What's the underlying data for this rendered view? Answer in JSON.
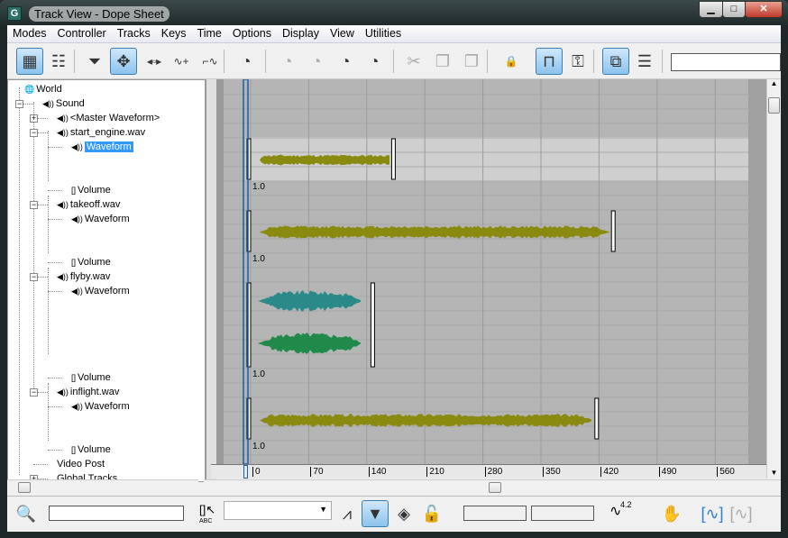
{
  "window": {
    "title": "Track View - Dope Sheet",
    "app_icon": "G",
    "controls": [
      "minimize",
      "maximize",
      "close"
    ]
  },
  "menu": [
    "Modes",
    "Controller",
    "Tracks",
    "Keys",
    "Time",
    "Options",
    "Display",
    "View",
    "Utilities"
  ],
  "toolbar": {
    "icons": [
      "edit-keys-icon",
      "edit-ranges-icon",
      "filters-icon",
      "move-keys-icon",
      "slide-keys-icon",
      "add-keys-icon",
      "scale-keys-icon",
      "select-time-icon",
      "delete-time-icon",
      "reverse-time-icon",
      "scale-time-icon",
      "insert-time-icon",
      "cut-icon",
      "copy-icon",
      "paste-icon",
      "lock-selection-icon",
      "snap-frames-icon",
      "show-keyable-icon",
      "modify-subtree-icon",
      "modify-child-keys-icon"
    ],
    "search_value": ""
  },
  "tree": [
    {
      "label": "World",
      "icon": "world-icon"
    },
    {
      "label": "Sound",
      "icon": "sound-icon"
    },
    {
      "label": "<Master Waveform>",
      "icon": "sound-icon"
    },
    {
      "label": "start_engine.wav",
      "icon": "sound-icon"
    },
    {
      "label": "Waveform",
      "icon": "sound-icon",
      "selected": true
    },
    {
      "label": "Volume",
      "icon": "bracket-icon"
    },
    {
      "label": "takeoff.wav",
      "icon": "sound-icon"
    },
    {
      "label": "Waveform",
      "icon": "sound-icon"
    },
    {
      "label": "Volume",
      "icon": "bracket-icon"
    },
    {
      "label": "flyby.wav",
      "icon": "sound-icon"
    },
    {
      "label": "Waveform",
      "icon": "sound-icon"
    },
    {
      "label": "Volume",
      "icon": "bracket-icon"
    },
    {
      "label": "inflight.wav",
      "icon": "sound-icon"
    },
    {
      "label": "Waveform",
      "icon": "sound-icon"
    },
    {
      "label": "Volume",
      "icon": "bracket-icon"
    },
    {
      "label": "Video Post",
      "icon": ""
    },
    {
      "label": "Global Tracks",
      "icon": ""
    }
  ],
  "tracks": [
    {
      "name": "start_engine.wav",
      "start": 0,
      "end": 170,
      "volume": "1.0",
      "colors": [
        "#8a8a10"
      ]
    },
    {
      "name": "takeoff.wav",
      "start": 0,
      "end": 435,
      "volume": "1.0",
      "colors": [
        "#8a8a10"
      ]
    },
    {
      "name": "flyby.wav",
      "start": 0,
      "end": 145,
      "volume": "1.0",
      "colors": [
        "#2a8a8a",
        "#1f8a4a"
      ]
    },
    {
      "name": "inflight.wav",
      "start": 0,
      "end": 415,
      "volume": "1.0",
      "colors": [
        "#8a8a10"
      ]
    }
  ],
  "ruler": {
    "ticks": [
      "0",
      "70",
      "140",
      "210",
      "280",
      "350",
      "420",
      "490",
      "560"
    ]
  },
  "current_frame": 0,
  "bottom": {
    "name_field": "",
    "dropdown_value": "",
    "frame_field": "",
    "value_field": "",
    "value_icon_label": "4.2",
    "abc_label": "ABC"
  }
}
